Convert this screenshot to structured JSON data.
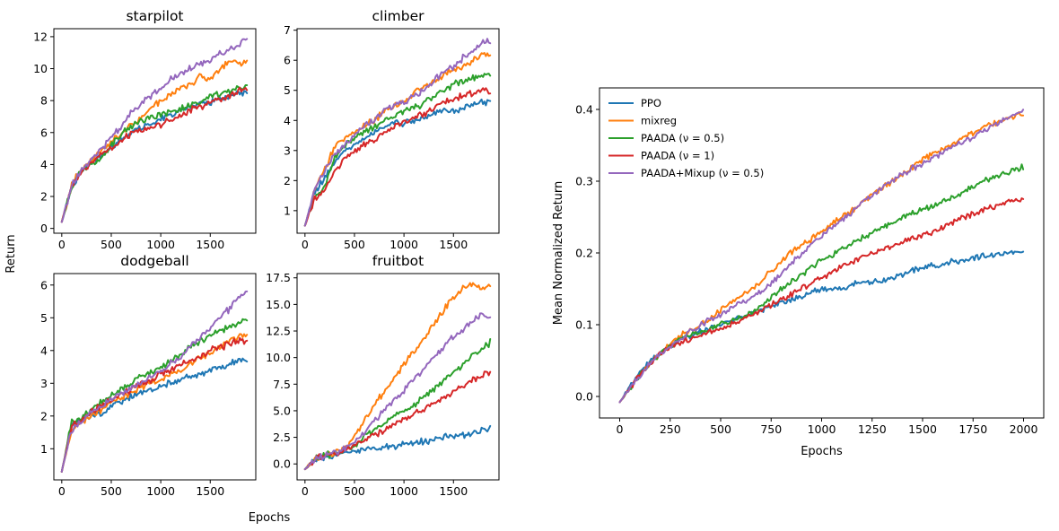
{
  "colors": {
    "ppo": "#1f77b4",
    "mixreg": "#ff7f0e",
    "paada_05": "#2ca02c",
    "paada_1": "#d62728",
    "paada_mixup": "#9467bd"
  },
  "left_panel": {
    "shared_ylabel": "Return",
    "shared_xlabel": "Epochs"
  },
  "chart_data": [
    {
      "type": "line",
      "title": "starpilot",
      "xlabel": "",
      "ylabel": "",
      "xlim": [
        -80,
        1960
      ],
      "ylim": [
        -0.3,
        12.5
      ],
      "xticks": [
        0,
        500,
        1000,
        1500
      ],
      "xtick_labels": [
        "0",
        "500",
        "1000",
        "1500"
      ],
      "yticks": [
        0,
        2,
        4,
        6,
        8,
        10,
        12
      ],
      "ytick_labels": [
        "0",
        "2",
        "4",
        "6",
        "8",
        "10",
        "12"
      ],
      "x": [
        0,
        100,
        200,
        300,
        400,
        500,
        600,
        700,
        800,
        900,
        1000,
        1100,
        1200,
        1300,
        1400,
        1500,
        1600,
        1700,
        1800,
        1880
      ],
      "series": [
        {
          "name": "PPO",
          "color_key": "ppo",
          "values": [
            0.4,
            2.6,
            3.6,
            4.1,
            4.6,
            5.1,
            5.6,
            6.0,
            6.3,
            6.6,
            6.9,
            7.1,
            7.4,
            7.6,
            7.8,
            7.9,
            8.1,
            8.2,
            8.5,
            8.6
          ]
        },
        {
          "name": "mixreg",
          "color_key": "mixreg",
          "values": [
            0.4,
            2.7,
            3.7,
            4.2,
            4.8,
            5.4,
            6.0,
            6.5,
            7.0,
            7.5,
            8.0,
            8.3,
            8.8,
            8.9,
            9.5,
            9.3,
            10.0,
            10.4,
            10.3,
            10.4
          ]
        },
        {
          "name": "PAADA (ν = 0.5)",
          "color_key": "paada_05",
          "values": [
            0.4,
            2.6,
            3.6,
            4.1,
            4.4,
            5.2,
            5.9,
            6.4,
            6.7,
            6.9,
            7.1,
            7.3,
            7.5,
            7.7,
            7.9,
            8.2,
            8.4,
            8.6,
            8.8,
            8.9
          ]
        },
        {
          "name": "PAADA (ν = 1)",
          "color_key": "paada_1",
          "values": [
            0.4,
            2.6,
            3.6,
            4.1,
            4.6,
            5.0,
            5.5,
            5.9,
            6.2,
            6.3,
            6.5,
            6.8,
            7.0,
            7.4,
            7.6,
            7.9,
            8.1,
            8.3,
            8.6,
            8.9
          ]
        },
        {
          "name": "PAADA+Mixup (ν = 0.5)",
          "color_key": "paada_mixup",
          "values": [
            0.4,
            2.7,
            3.7,
            4.3,
            4.9,
            5.6,
            6.4,
            7.2,
            7.8,
            8.3,
            8.8,
            9.3,
            9.7,
            10.0,
            10.2,
            10.5,
            10.9,
            11.2,
            11.6,
            11.8
          ]
        }
      ]
    },
    {
      "type": "line",
      "title": "climber",
      "xlabel": "",
      "ylabel": "",
      "xlim": [
        -80,
        1960
      ],
      "ylim": [
        0.25,
        7.05
      ],
      "xticks": [
        0,
        500,
        1000,
        1500
      ],
      "xtick_labels": [
        "0",
        "500",
        "1000",
        "1500"
      ],
      "yticks": [
        1,
        2,
        3,
        4,
        5,
        6,
        7
      ],
      "ytick_labels": [
        "1",
        "2",
        "3",
        "4",
        "5",
        "6",
        "7"
      ],
      "x": [
        0,
        100,
        200,
        300,
        400,
        500,
        600,
        700,
        800,
        900,
        1000,
        1100,
        1200,
        1300,
        1400,
        1500,
        1600,
        1700,
        1800,
        1880
      ],
      "series": [
        {
          "name": "PPO",
          "color_key": "ppo",
          "values": [
            0.5,
            1.6,
            2.1,
            2.6,
            3.0,
            3.2,
            3.4,
            3.6,
            3.8,
            3.9,
            3.9,
            4.0,
            4.1,
            4.2,
            4.3,
            4.3,
            4.4,
            4.5,
            4.6,
            4.6
          ]
        },
        {
          "name": "mixreg",
          "color_key": "mixreg",
          "values": [
            0.5,
            1.7,
            2.4,
            3.1,
            3.4,
            3.6,
            3.8,
            4.0,
            4.3,
            4.5,
            4.6,
            4.9,
            5.1,
            5.3,
            5.5,
            5.7,
            5.8,
            6.0,
            6.2,
            6.2
          ]
        },
        {
          "name": "PAADA (ν = 0.5)",
          "color_key": "paada_05",
          "values": [
            0.5,
            1.5,
            1.8,
            2.8,
            3.2,
            3.4,
            3.6,
            3.8,
            4.0,
            4.1,
            4.3,
            4.4,
            4.6,
            4.8,
            5.0,
            5.2,
            5.3,
            5.4,
            5.5,
            5.6
          ]
        },
        {
          "name": "PAADA (ν = 1)",
          "color_key": "paada_1",
          "values": [
            0.5,
            1.4,
            1.7,
            2.3,
            2.7,
            2.9,
            3.2,
            3.4,
            3.6,
            3.8,
            3.9,
            4.1,
            4.2,
            4.4,
            4.6,
            4.7,
            4.8,
            4.9,
            5.0,
            5.0
          ]
        },
        {
          "name": "PAADA+Mixup (ν = 0.5)",
          "color_key": "paada_mixup",
          "values": [
            0.5,
            1.7,
            2.3,
            2.9,
            3.2,
            3.5,
            3.8,
            4.0,
            4.3,
            4.5,
            4.6,
            4.8,
            5.0,
            5.3,
            5.6,
            5.8,
            6.1,
            6.3,
            6.6,
            6.6
          ]
        }
      ]
    },
    {
      "type": "line",
      "title": "dodgeball",
      "xlabel": "",
      "ylabel": "",
      "xlim": [
        -80,
        1960
      ],
      "ylim": [
        0.05,
        6.35
      ],
      "xticks": [
        0,
        500,
        1000,
        1500
      ],
      "xtick_labels": [
        "0",
        "500",
        "1000",
        "1500"
      ],
      "yticks": [
        1,
        2,
        3,
        4,
        5,
        6
      ],
      "ytick_labels": [
        "1",
        "2",
        "3",
        "4",
        "5",
        "6"
      ],
      "x": [
        0,
        100,
        200,
        300,
        400,
        500,
        600,
        700,
        800,
        900,
        1000,
        1100,
        1200,
        1300,
        1400,
        1500,
        1600,
        1700,
        1800,
        1880
      ],
      "series": [
        {
          "name": "PPO",
          "color_key": "ppo",
          "values": [
            0.3,
            1.7,
            1.9,
            2.0,
            2.1,
            2.3,
            2.4,
            2.6,
            2.7,
            2.8,
            2.9,
            3.0,
            3.1,
            3.2,
            3.3,
            3.4,
            3.5,
            3.6,
            3.7,
            3.7
          ]
        },
        {
          "name": "mixreg",
          "color_key": "mixreg",
          "values": [
            0.3,
            1.6,
            1.8,
            2.0,
            2.2,
            2.4,
            2.6,
            2.7,
            2.9,
            3.0,
            3.1,
            3.3,
            3.4,
            3.6,
            3.8,
            3.9,
            4.1,
            4.3,
            4.4,
            4.5
          ]
        },
        {
          "name": "PAADA (ν = 0.5)",
          "color_key": "paada_05",
          "values": [
            0.3,
            1.8,
            1.9,
            2.2,
            2.4,
            2.6,
            2.8,
            3.0,
            3.2,
            3.3,
            3.5,
            3.7,
            3.9,
            4.1,
            4.3,
            4.5,
            4.6,
            4.7,
            4.8,
            5.0
          ]
        },
        {
          "name": "PAADA (ν = 1)",
          "color_key": "paada_1",
          "values": [
            0.3,
            1.7,
            1.9,
            2.1,
            2.3,
            2.5,
            2.7,
            2.8,
            3.0,
            3.1,
            3.3,
            3.4,
            3.6,
            3.7,
            3.8,
            4.0,
            4.1,
            4.2,
            4.3,
            4.3
          ]
        },
        {
          "name": "PAADA+Mixup (ν = 0.5)",
          "color_key": "paada_mixup",
          "values": [
            0.3,
            1.6,
            1.8,
            2.1,
            2.3,
            2.5,
            2.7,
            2.8,
            3.0,
            3.2,
            3.4,
            3.6,
            3.8,
            4.1,
            4.4,
            4.7,
            5.0,
            5.3,
            5.7,
            5.8
          ]
        }
      ]
    },
    {
      "type": "line",
      "title": "fruitbot",
      "xlabel": "",
      "ylabel": "",
      "xlim": [
        -80,
        1960
      ],
      "ylim": [
        -1.5,
        17.9
      ],
      "xticks": [
        0,
        500,
        1000,
        1500
      ],
      "xtick_labels": [
        "0",
        "500",
        "1000",
        "1500"
      ],
      "yticks": [
        0,
        2.5,
        5,
        7.5,
        10,
        12.5,
        15,
        17.5
      ],
      "ytick_labels": [
        "0.0",
        "2.5",
        "5.0",
        "7.5",
        "10.0",
        "12.5",
        "15.0",
        "17.5"
      ],
      "x": [
        0,
        100,
        200,
        300,
        400,
        500,
        600,
        700,
        800,
        900,
        1000,
        1100,
        1200,
        1300,
        1400,
        1500,
        1600,
        1700,
        1800,
        1880
      ],
      "series": [
        {
          "name": "PPO",
          "color_key": "ppo",
          "values": [
            -0.5,
            0.4,
            0.7,
            0.9,
            1.0,
            1.2,
            1.3,
            1.5,
            1.6,
            1.7,
            1.8,
            2.0,
            2.1,
            2.3,
            2.5,
            2.6,
            2.8,
            3.0,
            3.2,
            3.4
          ]
        },
        {
          "name": "mixreg",
          "color_key": "mixreg",
          "values": [
            -0.5,
            0.4,
            0.8,
            1.1,
            1.5,
            2.5,
            4.0,
            5.5,
            6.8,
            8.0,
            9.3,
            10.6,
            11.8,
            13.1,
            14.5,
            15.6,
            16.6,
            16.9,
            16.4,
            16.8
          ]
        },
        {
          "name": "PAADA (ν = 0.5)",
          "color_key": "paada_05",
          "values": [
            -0.5,
            0.4,
            0.8,
            1.0,
            1.3,
            1.8,
            2.5,
            3.1,
            3.7,
            4.3,
            5.0,
            5.6,
            6.3,
            7.1,
            7.9,
            8.6,
            9.4,
            10.1,
            10.9,
            11.5
          ]
        },
        {
          "name": "PAADA (ν = 1)",
          "color_key": "paada_1",
          "values": [
            -0.5,
            0.4,
            0.8,
            1.0,
            1.3,
            1.7,
            2.2,
            2.7,
            3.2,
            3.7,
            4.2,
            4.7,
            5.2,
            5.7,
            6.3,
            6.8,
            7.4,
            7.9,
            8.4,
            8.7
          ]
        },
        {
          "name": "PAADA+Mixup (ν = 0.5)",
          "color_key": "paada_mixup",
          "values": [
            -0.5,
            0.4,
            0.8,
            1.1,
            1.4,
            2.1,
            3.0,
            4.0,
            5.0,
            6.0,
            7.0,
            8.0,
            9.0,
            10.0,
            11.0,
            12.0,
            12.6,
            13.4,
            14.0,
            13.6
          ]
        }
      ]
    },
    {
      "type": "line",
      "title": "",
      "xlabel": "Epochs",
      "ylabel": "Mean Normalized Return",
      "xlim": [
        -100,
        2100
      ],
      "ylim": [
        -0.03,
        0.43
      ],
      "xticks": [
        0,
        250,
        500,
        750,
        1000,
        1250,
        1500,
        1750,
        2000
      ],
      "xtick_labels": [
        "0",
        "250",
        "500",
        "750",
        "1000",
        "1250",
        "1500",
        "1750",
        "2000"
      ],
      "yticks": [
        0,
        0.1,
        0.2,
        0.3,
        0.4
      ],
      "ytick_labels": [
        "0.0",
        "0.1",
        "0.2",
        "0.3",
        "0.4"
      ],
      "legend": "top-left",
      "x": [
        0,
        100,
        200,
        300,
        400,
        500,
        600,
        700,
        800,
        900,
        1000,
        1100,
        1200,
        1300,
        1400,
        1500,
        1600,
        1700,
        1800,
        1900,
        2000
      ],
      "series": [
        {
          "name": "PPO",
          "color_key": "ppo",
          "values": [
            -0.008,
            0.035,
            0.06,
            0.08,
            0.09,
            0.1,
            0.11,
            0.12,
            0.13,
            0.14,
            0.15,
            0.15,
            0.16,
            0.16,
            0.17,
            0.18,
            0.185,
            0.19,
            0.195,
            0.2,
            0.2
          ]
        },
        {
          "name": "mixreg",
          "color_key": "mixreg",
          "values": [
            -0.008,
            0.03,
            0.06,
            0.085,
            0.1,
            0.12,
            0.14,
            0.16,
            0.19,
            0.21,
            0.23,
            0.25,
            0.27,
            0.29,
            0.31,
            0.33,
            0.345,
            0.36,
            0.375,
            0.385,
            0.395
          ]
        },
        {
          "name": "PAADA (ν = 0.5)",
          "color_key": "paada_05",
          "values": [
            -0.008,
            0.03,
            0.06,
            0.08,
            0.09,
            0.1,
            0.11,
            0.125,
            0.15,
            0.17,
            0.19,
            0.205,
            0.22,
            0.235,
            0.25,
            0.26,
            0.27,
            0.285,
            0.3,
            0.31,
            0.32
          ]
        },
        {
          "name": "PAADA (ν = 1)",
          "color_key": "paada_1",
          "values": [
            -0.008,
            0.03,
            0.06,
            0.075,
            0.085,
            0.095,
            0.105,
            0.12,
            0.135,
            0.15,
            0.165,
            0.18,
            0.195,
            0.205,
            0.215,
            0.225,
            0.235,
            0.25,
            0.26,
            0.27,
            0.275
          ]
        },
        {
          "name": "PAADA+Mixup (ν = 0.5)",
          "color_key": "paada_mixup",
          "values": [
            -0.008,
            0.03,
            0.06,
            0.08,
            0.1,
            0.115,
            0.13,
            0.145,
            0.17,
            0.2,
            0.225,
            0.245,
            0.27,
            0.29,
            0.31,
            0.325,
            0.34,
            0.355,
            0.37,
            0.385,
            0.4
          ]
        }
      ]
    }
  ]
}
